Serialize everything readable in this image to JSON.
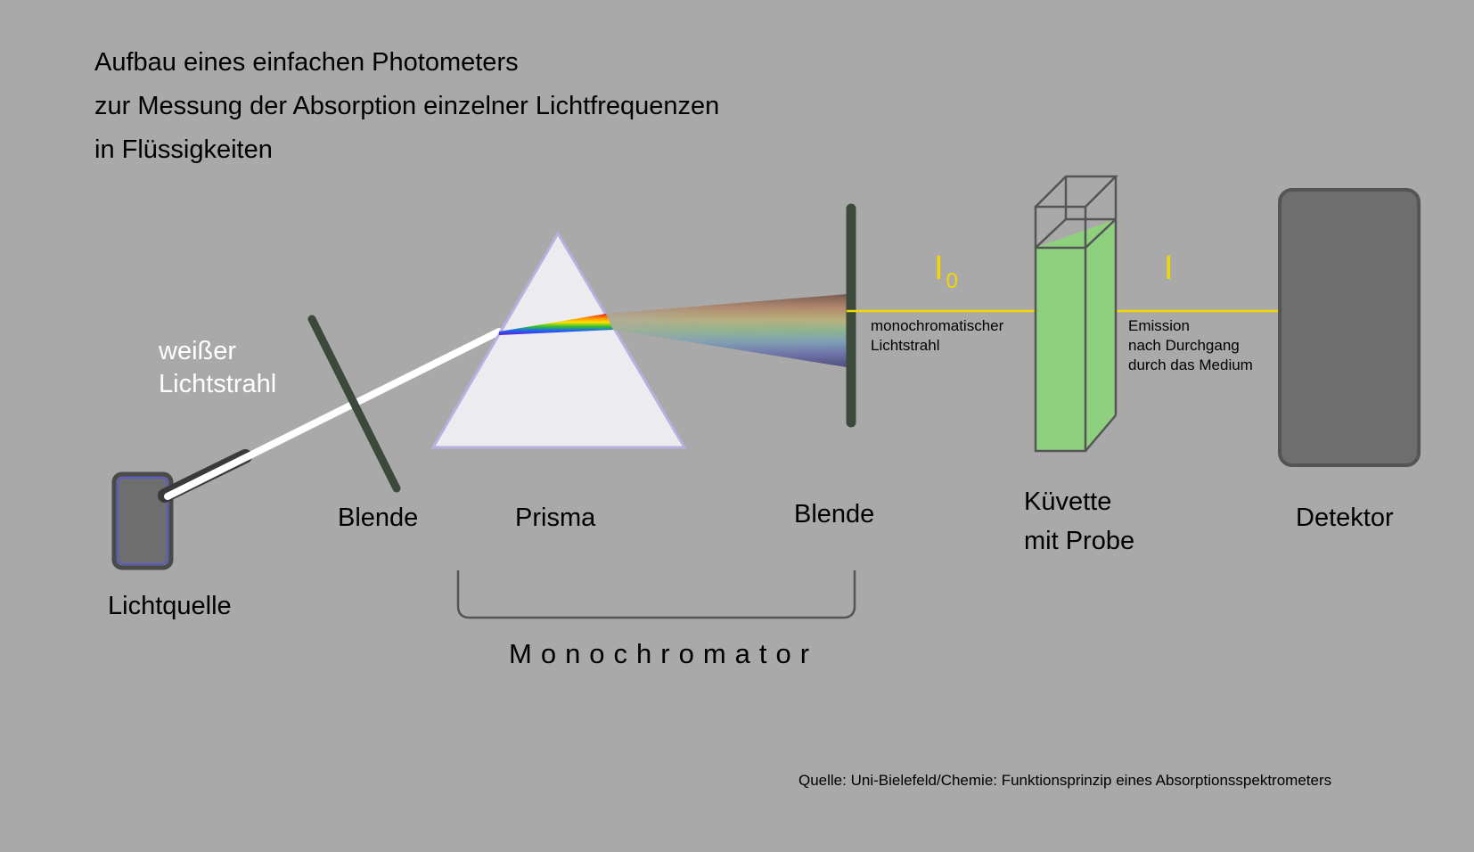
{
  "title": {
    "line1": "Aufbau eines  einfachen Photometers",
    "line2": "zur Messung der Absorption einzelner Lichtfrequenzen",
    "line3": "in Flüssigkeiten"
  },
  "labels": {
    "white_beam_line1": "weißer",
    "white_beam_line2": "Lichtstrahl",
    "light_source": "Lichtquelle",
    "aperture_1": "Blende",
    "prism": "Prisma",
    "aperture_2": "Blende",
    "cuvette_line1": "Küvette",
    "cuvette_line2": "mit Probe",
    "detector": "Detektor",
    "monochromator": "Monochromator",
    "monochromatic_line1": "monochromatischer",
    "monochromatic_line2": "Lichtstrahl",
    "emission_line1": "Emission",
    "emission_line2": "nach Durchgang",
    "emission_line3": "durch das Medium",
    "intensity_in": "I",
    "intensity_in_sub": "0",
    "intensity_out": "I"
  },
  "source": "Quelle: Uni-Bielefeld/Chemie: Funktionsprinzip eines Absorptionsspektrometers",
  "colors": {
    "background": "#a9a9a9",
    "aperture": "#3b4a3b",
    "beam_yellow": "#f2d800",
    "cuvette_liquid": "#8fd07f",
    "detector": "#6e6e6e",
    "prism_fill": "#ececf0",
    "prism_edge": "#b8b0e0"
  }
}
